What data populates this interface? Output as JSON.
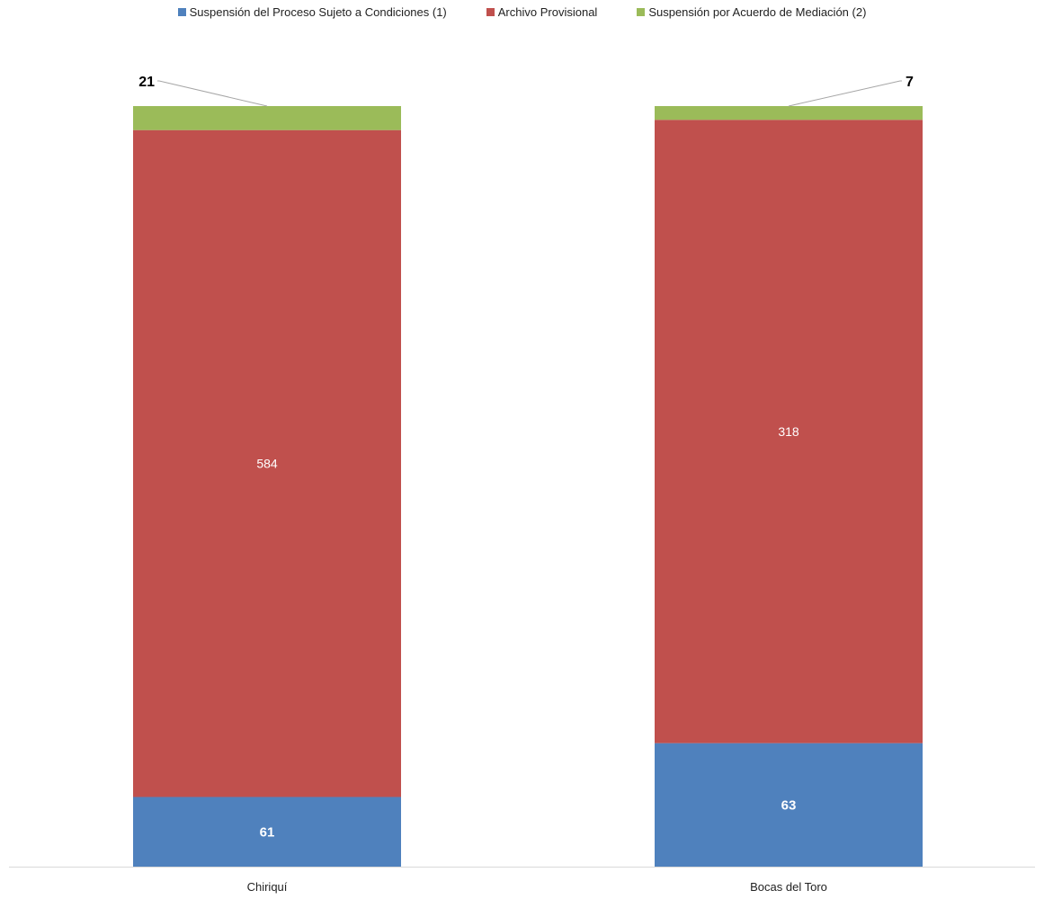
{
  "chart_data": {
    "type": "bar",
    "stacked": true,
    "categories": [
      "Chiriquí",
      "Bocas del Toro"
    ],
    "series": [
      {
        "name": "Suspensión del Proceso Sujeto a Condiciones (1)",
        "color": "#4F81BD",
        "values": [
          61,
          63
        ]
      },
      {
        "name": "Archivo Provisional",
        "color": "#C0504D",
        "values": [
          584,
          318
        ]
      },
      {
        "name": "Suspensión por Acuerdo de Mediación (2)",
        "color": "#9BBB59",
        "values": [
          21,
          7
        ]
      }
    ],
    "normalized_percent": true,
    "legend_position": "top",
    "grid": false,
    "title": "",
    "xlabel": "",
    "ylabel": ""
  }
}
